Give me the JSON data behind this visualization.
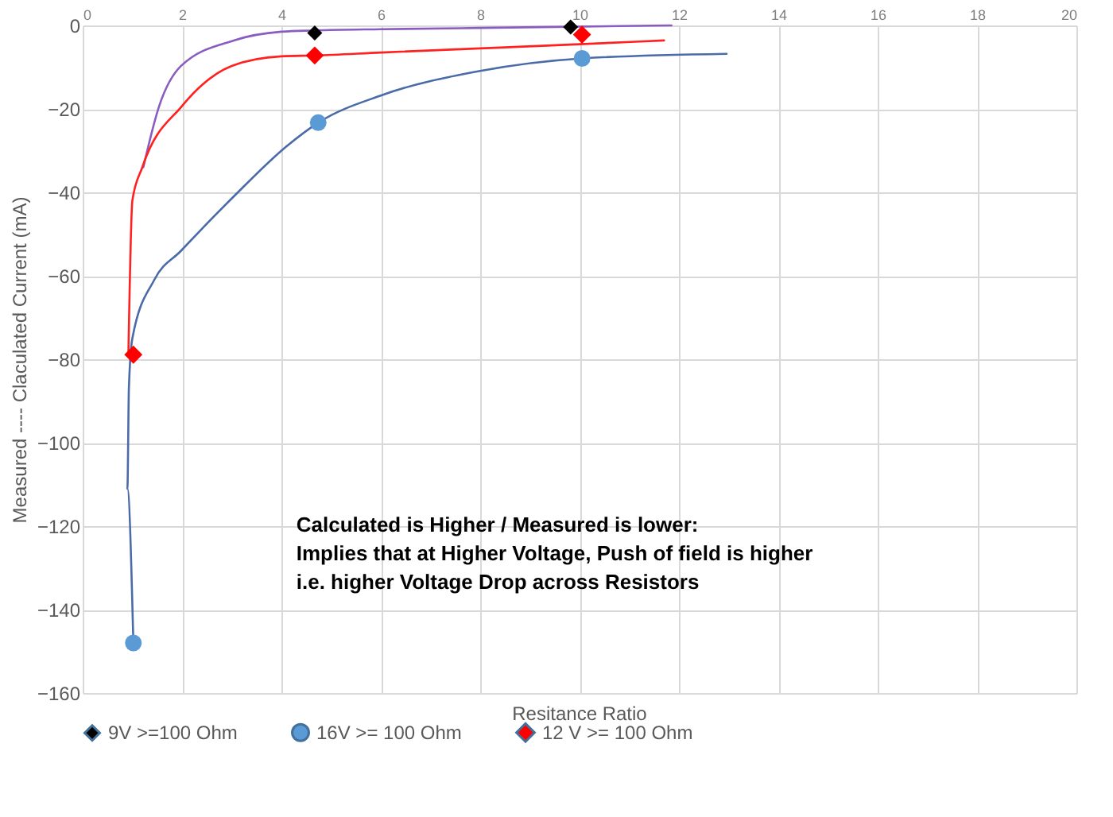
{
  "chart_data": {
    "type": "scatter",
    "xlabel": "Resitance Ratio",
    "ylabel": "Measured ---- Claculated Current (mA)",
    "xlim": [
      0,
      20
    ],
    "xticks": [
      0,
      2,
      4,
      6,
      8,
      10,
      12,
      14,
      16,
      18,
      20
    ],
    "ylim": [
      -160,
      0
    ],
    "yticks": [
      -160,
      -140,
      -120,
      -100,
      -80,
      -60,
      -40,
      -20,
      0
    ],
    "grid": true,
    "legend": "bottom",
    "annotations": [
      "Calculated is Higher / Measured is lower:\nImplies that at Higher Voltage, Push of field is higher\ni.e. higher Voltage Drop across Resistors"
    ],
    "series": [
      {
        "type": "line",
        "color": "#8a5cc0",
        "marker": "none",
        "x": [
          1.22,
          1.54,
          1.98,
          3.04,
          4.0,
          4.67,
          6,
          8,
          9.82,
          11.85
        ],
        "values": [
          -34,
          -19.3,
          -9.7,
          -3.6,
          -1.5,
          -1.2,
          -0.9,
          -0.6,
          -0.3,
          0
        ]
      },
      {
        "type": "line",
        "color": "#ff2020",
        "marker": "none",
        "x": [
          0.92,
          1.0,
          1.2,
          2.0,
          3.0,
          4.0,
          4.67,
          6,
          8,
          10,
          11.7
        ],
        "values": [
          -79,
          -42,
          -34,
          -19.3,
          -9.7,
          -7.4,
          -7.2,
          -6.5,
          -5.5,
          -4.5,
          -3.6
        ]
      },
      {
        "type": "line",
        "color": "#4a6aa8",
        "marker": "none",
        "x": [
          1.02,
          0.9,
          0.93,
          1.0,
          1.44,
          1.98,
          3.04,
          4.1,
          4.74,
          6.0,
          8.0,
          10.05,
          12.96
        ],
        "values": [
          -148,
          -111,
          -87,
          -75,
          -61,
          -54,
          -41,
          -29,
          -23.3,
          -16.8,
          -10.9,
          -7.9,
          -6.8
        ]
      },
      {
        "name": "9V >=100 Ohm",
        "color": "#000000",
        "marker": "diamond",
        "x": [
          4.67,
          9.82
        ],
        "values": [
          -1.8,
          -0.4
        ]
      },
      {
        "name": "16V >= 100 Ohm",
        "color": "#5b9bd5",
        "marker": "circle",
        "x": [
          1.02,
          4.74,
          10.05
        ],
        "values": [
          -148,
          -23.3,
          -7.9
        ]
      },
      {
        "name": "12 V >= 100 Ohm",
        "color": "#ff0000",
        "marker": "diamond",
        "x": [
          1.02,
          4.67,
          10.05
        ],
        "values": [
          -78.9,
          -7.2,
          -2.2
        ]
      }
    ]
  }
}
